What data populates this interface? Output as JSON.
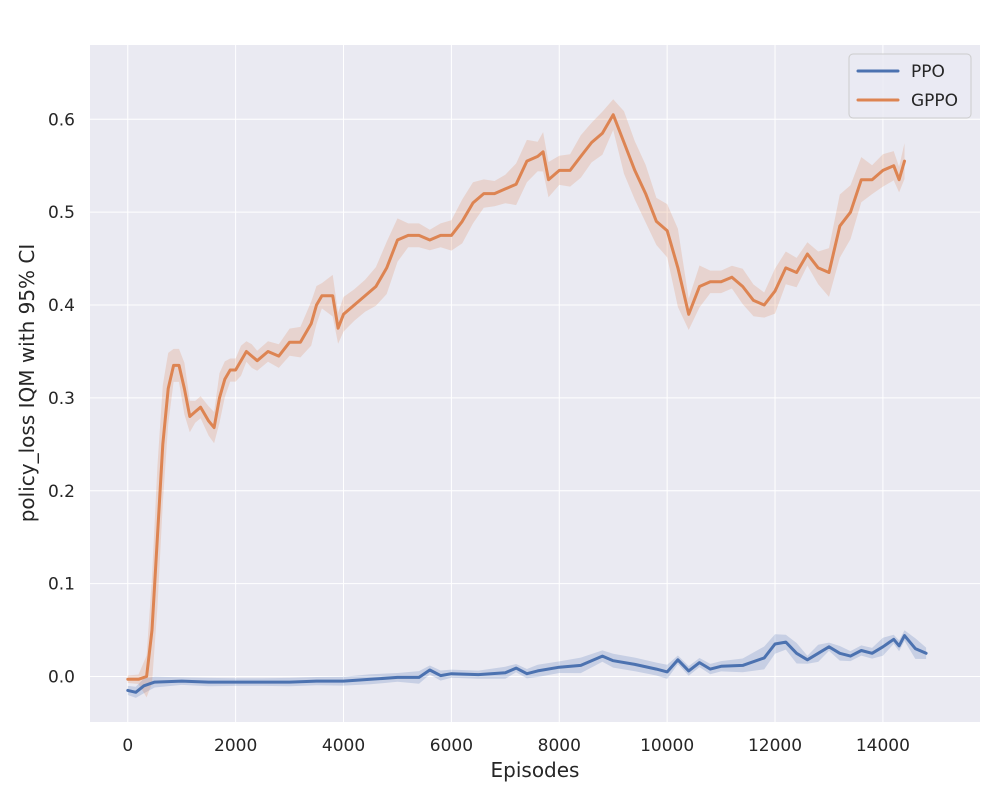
{
  "chart_data": {
    "type": "line",
    "xlabel": "Episodes",
    "ylabel": "policy_loss IQM with 95% CI",
    "xlim": [
      -700,
      15800
    ],
    "ylim": [
      -0.049,
      0.68
    ],
    "xticks": [
      0,
      2000,
      4000,
      6000,
      8000,
      10000,
      12000,
      14000
    ],
    "xtick_labels": [
      "0",
      "2000",
      "4000",
      "6000",
      "8000",
      "10000",
      "12000",
      "14000"
    ],
    "yticks": [
      0.0,
      0.1,
      0.2,
      0.3,
      0.4,
      0.5,
      0.6
    ],
    "ytick_labels": [
      "0.0",
      "0.1",
      "0.2",
      "0.3",
      "0.4",
      "0.5",
      "0.6"
    ],
    "grid": true,
    "legend_position": "top-right",
    "series": [
      {
        "name": "PPO",
        "color": "#4c72b0",
        "ci": true,
        "x": [
          0,
          150,
          300,
          500,
          1000,
          1500,
          2000,
          2500,
          3000,
          3500,
          4000,
          4500,
          5000,
          5400,
          5600,
          5800,
          6000,
          6500,
          7000,
          7200,
          7400,
          7600,
          8000,
          8400,
          8800,
          9000,
          9400,
          9800,
          10000,
          10200,
          10400,
          10600,
          10800,
          11000,
          11400,
          11800,
          12000,
          12200,
          12400,
          12600,
          12800,
          13000,
          13200,
          13400,
          13600,
          13800,
          14000,
          14200,
          14300,
          14400,
          14600,
          14800
        ],
        "y": [
          -0.015,
          -0.017,
          -0.01,
          -0.006,
          -0.005,
          -0.006,
          -0.006,
          -0.006,
          -0.006,
          -0.005,
          -0.005,
          -0.003,
          -0.001,
          -0.001,
          0.007,
          0.001,
          0.003,
          0.002,
          0.004,
          0.009,
          0.003,
          0.006,
          0.01,
          0.012,
          0.022,
          0.017,
          0.013,
          0.008,
          0.005,
          0.018,
          0.006,
          0.015,
          0.008,
          0.011,
          0.012,
          0.02,
          0.035,
          0.037,
          0.025,
          0.018,
          0.025,
          0.032,
          0.025,
          0.022,
          0.028,
          0.025,
          0.032,
          0.04,
          0.033,
          0.044,
          0.03,
          0.025
        ]
      },
      {
        "name": "GPPO",
        "color": "#dd8452",
        "ci": true,
        "x": [
          0,
          200,
          350,
          450,
          550,
          650,
          750,
          850,
          950,
          1050,
          1150,
          1250,
          1350,
          1500,
          1600,
          1700,
          1800,
          1900,
          2000,
          2100,
          2200,
          2300,
          2400,
          2600,
          2800,
          3000,
          3200,
          3400,
          3500,
          3600,
          3800,
          3900,
          4000,
          4200,
          4400,
          4600,
          4800,
          5000,
          5200,
          5400,
          5600,
          5800,
          6000,
          6200,
          6400,
          6600,
          6800,
          7000,
          7200,
          7400,
          7600,
          7700,
          7800,
          8000,
          8200,
          8400,
          8600,
          8800,
          9000,
          9200,
          9400,
          9600,
          9800,
          10000,
          10200,
          10400,
          10600,
          10800,
          11000,
          11200,
          11400,
          11600,
          11800,
          12000,
          12200,
          12400,
          12600,
          12800,
          13000,
          13200,
          13400,
          13600,
          13800,
          14000,
          14200,
          14300,
          14400
        ],
        "y": [
          -0.003,
          -0.003,
          0.0,
          0.05,
          0.15,
          0.25,
          0.31,
          0.335,
          0.335,
          0.31,
          0.28,
          0.285,
          0.29,
          0.275,
          0.268,
          0.3,
          0.32,
          0.33,
          0.33,
          0.34,
          0.35,
          0.345,
          0.34,
          0.35,
          0.345,
          0.36,
          0.36,
          0.38,
          0.4,
          0.41,
          0.41,
          0.375,
          0.39,
          0.4,
          0.41,
          0.42,
          0.44,
          0.47,
          0.475,
          0.475,
          0.47,
          0.475,
          0.475,
          0.49,
          0.51,
          0.52,
          0.52,
          0.525,
          0.53,
          0.555,
          0.56,
          0.565,
          0.535,
          0.545,
          0.545,
          0.56,
          0.575,
          0.585,
          0.605,
          0.575,
          0.545,
          0.52,
          0.49,
          0.48,
          0.44,
          0.39,
          0.42,
          0.425,
          0.425,
          0.43,
          0.42,
          0.405,
          0.4,
          0.415,
          0.44,
          0.435,
          0.455,
          0.44,
          0.435,
          0.485,
          0.5,
          0.535,
          0.535,
          0.545,
          0.55,
          0.535,
          0.555
        ]
      }
    ]
  }
}
